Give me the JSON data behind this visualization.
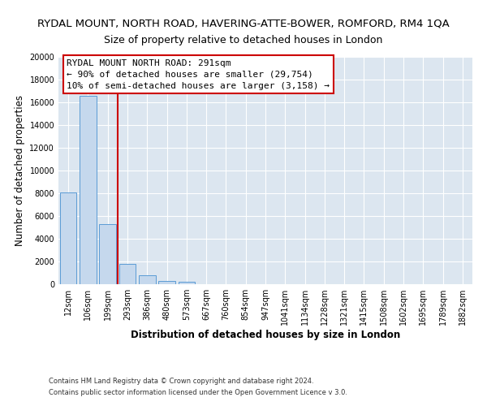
{
  "title": "RYDAL MOUNT, NORTH ROAD, HAVERING-ATTE-BOWER, ROMFORD, RM4 1QA",
  "subtitle": "Size of property relative to detached houses in London",
  "xlabel": "Distribution of detached houses by size in London",
  "ylabel": "Number of detached properties",
  "bar_labels": [
    "12sqm",
    "106sqm",
    "199sqm",
    "293sqm",
    "386sqm",
    "480sqm",
    "573sqm",
    "667sqm",
    "760sqm",
    "854sqm",
    "947sqm",
    "1041sqm",
    "1134sqm",
    "1228sqm",
    "1321sqm",
    "1415sqm",
    "1508sqm",
    "1602sqm",
    "1695sqm",
    "1789sqm",
    "1882sqm"
  ],
  "bar_values": [
    8100,
    16600,
    5300,
    1800,
    800,
    300,
    250,
    0,
    0,
    0,
    0,
    0,
    0,
    0,
    0,
    0,
    0,
    0,
    0,
    0,
    0
  ],
  "bar_color": "#c5d8ed",
  "bar_edge_color": "#5b9bd5",
  "highlight_bar_index": 2,
  "highlight_color": "#cc0000",
  "ylim": [
    0,
    20000
  ],
  "yticks": [
    0,
    2000,
    4000,
    6000,
    8000,
    10000,
    12000,
    14000,
    16000,
    18000,
    20000
  ],
  "annotation_title": "RYDAL MOUNT NORTH ROAD: 291sqm",
  "annotation_line1": "← 90% of detached houses are smaller (29,754)",
  "annotation_line2": "10% of semi-detached houses are larger (3,158) →",
  "footer_line1": "Contains HM Land Registry data © Crown copyright and database right 2024.",
  "footer_line2": "Contains public sector information licensed under the Open Government Licence v 3.0.",
  "annotation_box_color": "#ffffff",
  "annotation_box_edge": "#cc0000",
  "plot_bg_color": "#dce6f0",
  "fig_bg_color": "#ffffff",
  "title_fontsize": 9.5,
  "subtitle_fontsize": 9,
  "axis_label_fontsize": 8.5,
  "tick_fontsize": 7,
  "annotation_fontsize": 8,
  "footer_fontsize": 6
}
